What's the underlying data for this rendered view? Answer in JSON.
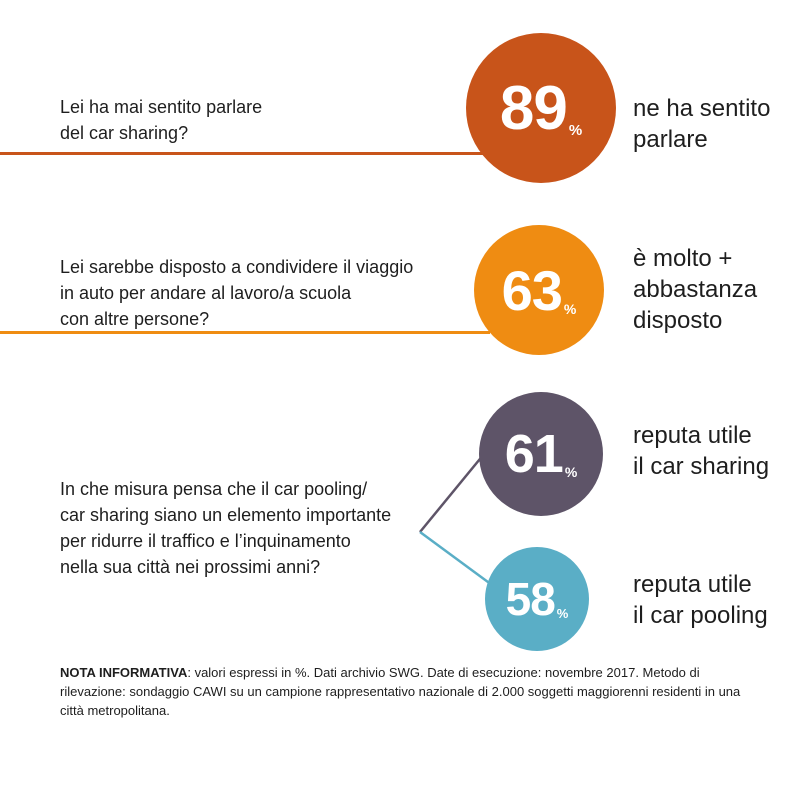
{
  "chart_data": {
    "type": "infographic",
    "items": [
      {
        "question": "Lei ha mai sentito parlare\ndel car sharing?",
        "value": 89,
        "unit": "%",
        "label": "ne ha sentito\nparlare",
        "color": "#c8541a"
      },
      {
        "question": "Lei sarebbe disposto a condividere il viaggio\nin auto per andare al lavoro/a scuola\ncon altre persone?",
        "value": 63,
        "unit": "%",
        "label": "è molto +\nabbastanza\ndisposto",
        "color": "#ef8c12"
      },
      {
        "question": "In che misura pensa che il car pooling/\ncar sharing siano un elemento importante\nper ridurre il traffico e l’inquinamento\nnella sua città nei prossimi anni?",
        "answers": [
          {
            "value": 61,
            "unit": "%",
            "label": "reputa utile\nil car sharing",
            "color": "#5e5468"
          },
          {
            "value": 58,
            "unit": "%",
            "label": "reputa utile\nil car pooling",
            "color": "#5aaec6"
          }
        ]
      }
    ]
  },
  "note": {
    "title": "NOTA INFORMATIVA",
    "text": ": valori espressi in %. Dati archivio SWG. Date di esecuzione: novembre 2017. Metodo di rilevazione: sondaggio CAWI su un campione rappresentativo nazionale di 2.000 soggetti maggiorenni residenti in una città metropolitana."
  }
}
